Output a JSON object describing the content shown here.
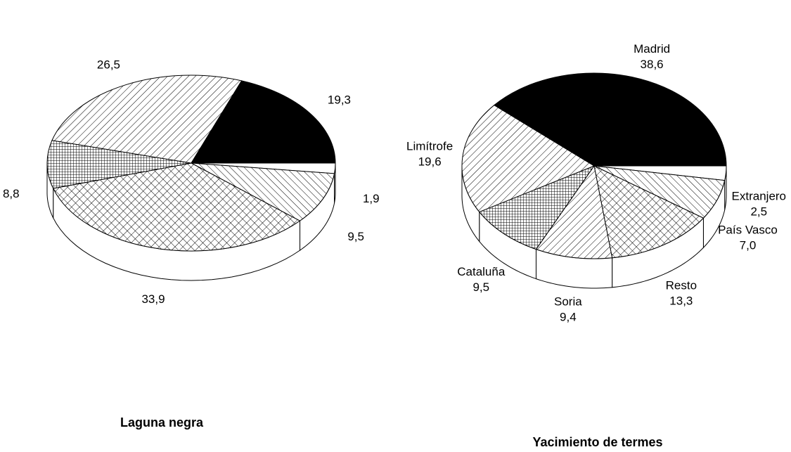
{
  "chart_data": [
    {
      "type": "pie",
      "title": "Laguna negra",
      "values": [
        1.9,
        9.5,
        33.9,
        8.8,
        26.5,
        19.3
      ],
      "value_labels": [
        "1,9",
        "9,5",
        "33,9",
        "8,8",
        "26,5",
        "19,3"
      ]
    },
    {
      "type": "pie",
      "title": "Yacimiento de termes",
      "categories": [
        "Extranjero",
        "País Vasco",
        "Resto",
        "Soria",
        "Cataluña",
        "Limítrofe",
        "Madrid"
      ],
      "values": [
        2.5,
        7.0,
        13.3,
        9.4,
        9.5,
        19.6,
        38.6
      ],
      "value_labels": [
        "2,5",
        "7,0",
        "13,3",
        "9,4",
        "9,5",
        "19,6",
        "38,6"
      ]
    }
  ]
}
